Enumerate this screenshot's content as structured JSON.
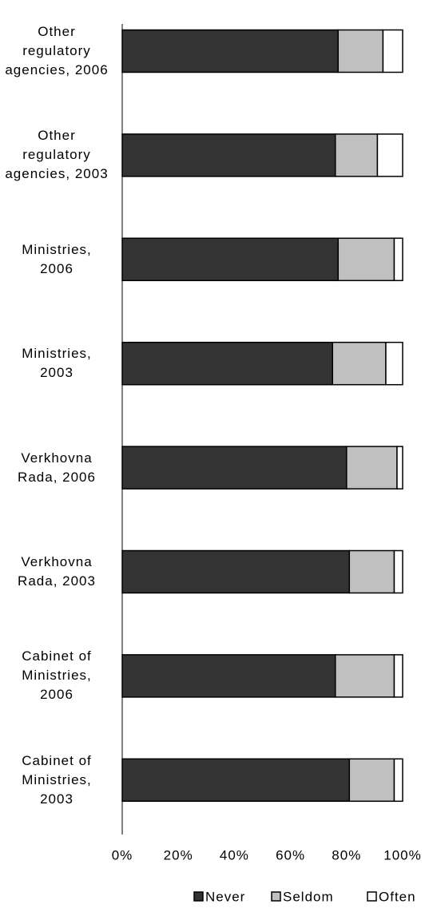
{
  "chart_data": {
    "type": "stacked-barh",
    "categories": [
      "Other regulatory agencies, 2006",
      "Other regulatory agencies, 2003",
      "Ministries, 2006",
      "Ministries, 2003",
      "Verkhovna Rada, 2006",
      "Verkhovna Rada, 2003",
      "Cabinet of Ministries, 2006",
      "Cabinet of Ministries, 2003"
    ],
    "series": [
      {
        "name": "Never",
        "color": "#333333",
        "values": [
          77,
          76,
          77,
          75,
          80,
          81,
          76,
          81
        ]
      },
      {
        "name": "Seldom",
        "color": "#c0c0c0",
        "values": [
          16,
          15,
          20,
          19,
          18,
          16,
          21,
          16
        ]
      },
      {
        "name": "Often",
        "color": "#ffffff",
        "values": [
          7,
          9,
          3,
          6,
          2,
          3,
          3,
          3
        ]
      }
    ],
    "xlim": [
      0,
      100
    ],
    "xticks": [
      {
        "value": 0,
        "label": "0%"
      },
      {
        "value": 20,
        "label": "20%"
      },
      {
        "value": 40,
        "label": "40%"
      },
      {
        "value": 60,
        "label": "60%"
      },
      {
        "value": 80,
        "label": "80%"
      },
      {
        "value": 100,
        "label": "100%"
      }
    ]
  }
}
